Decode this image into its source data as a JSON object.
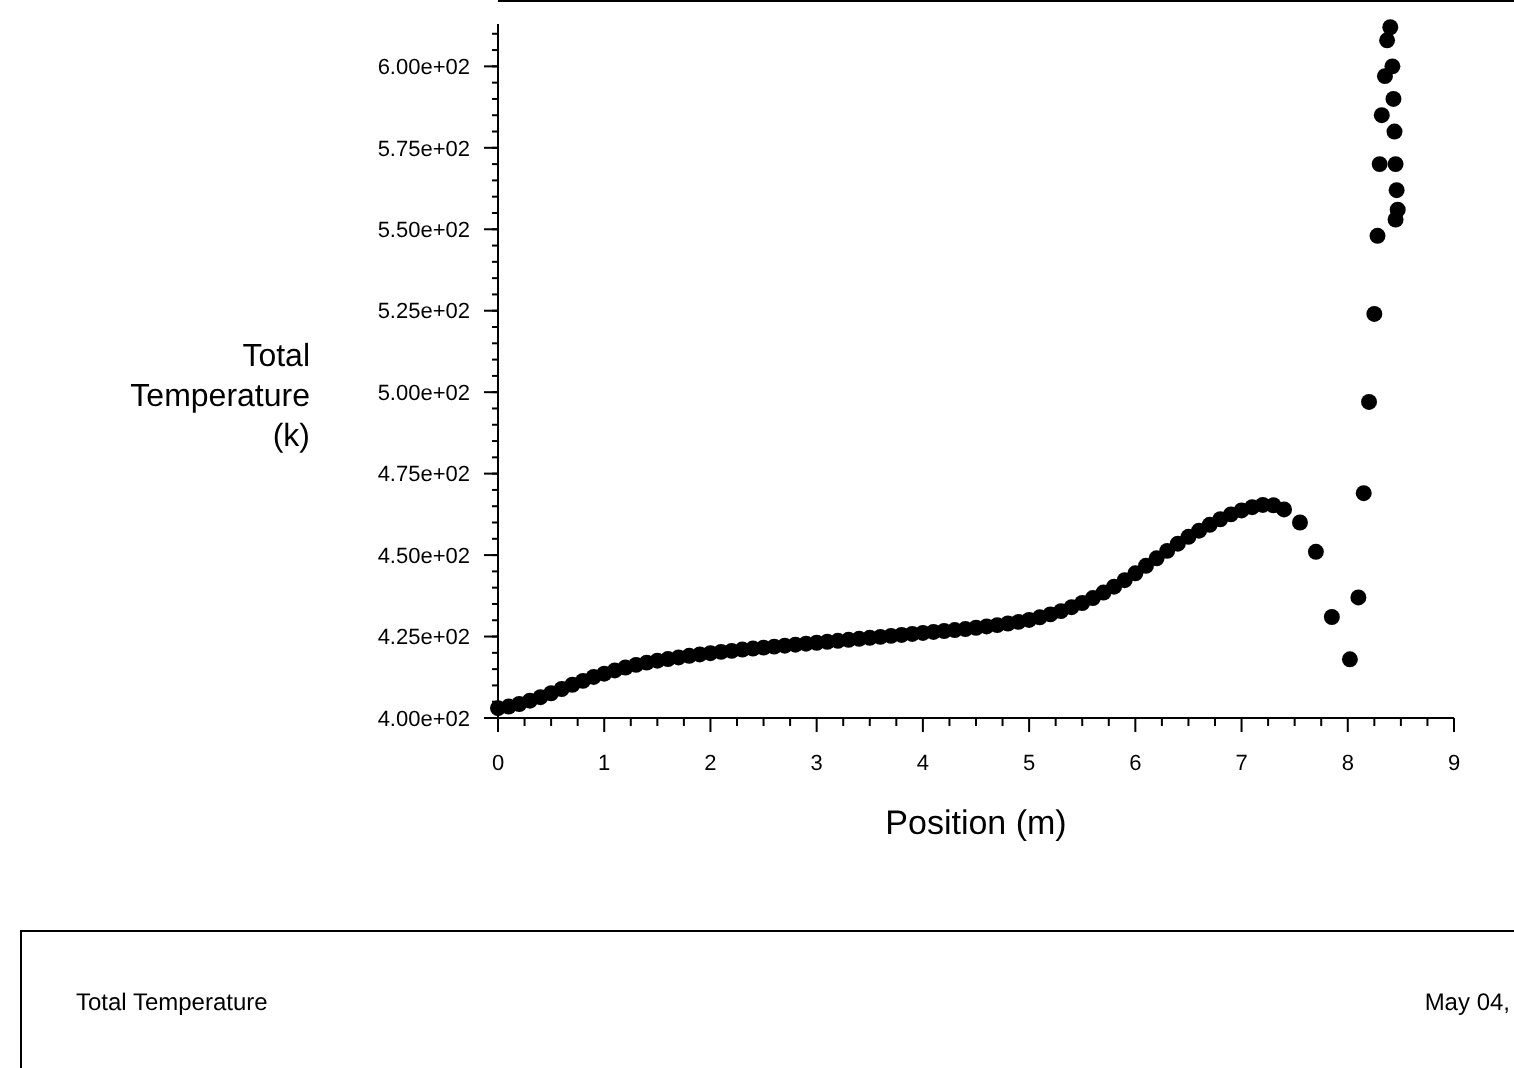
{
  "chart_data": {
    "type": "scatter",
    "xlabel": "Position (m)",
    "ylabel": "Total Temperature (k)",
    "marker": "circle",
    "grid": false,
    "xlim": [
      0,
      9
    ],
    "ylim": [
      400,
      613
    ],
    "xticks": [
      0,
      {
        "value": 0.25,
        "label": null
      },
      {
        "value": 0.5,
        "label": null
      },
      {
        "value": 0.75,
        "label": null
      },
      1,
      {
        "value": 1.25,
        "label": null
      },
      {
        "value": 1.5,
        "label": null
      },
      {
        "value": 1.75,
        "label": null
      },
      2,
      {
        "value": 2.25,
        "label": null
      },
      {
        "value": 2.5,
        "label": null
      },
      {
        "value": 2.75,
        "label": null
      },
      3,
      {
        "value": 3.25,
        "label": null
      },
      {
        "value": 3.5,
        "label": null
      },
      {
        "value": 3.75,
        "label": null
      },
      4,
      {
        "value": 4.25,
        "label": null
      },
      {
        "value": 4.5,
        "label": null
      },
      {
        "value": 4.75,
        "label": null
      },
      5,
      {
        "value": 5.25,
        "label": null
      },
      {
        "value": 5.5,
        "label": null
      },
      {
        "value": 5.75,
        "label": null
      },
      6,
      {
        "value": 6.25,
        "label": null
      },
      {
        "value": 6.5,
        "label": null
      },
      {
        "value": 6.75,
        "label": null
      },
      7,
      {
        "value": 7.25,
        "label": null
      },
      {
        "value": 7.5,
        "label": null
      },
      {
        "value": 7.75,
        "label": null
      },
      8,
      {
        "value": 8.25,
        "label": null
      },
      {
        "value": 8.5,
        "label": null
      },
      {
        "value": 8.75,
        "label": null
      },
      9
    ],
    "yticks": [
      {
        "value": 400,
        "label": "4.00e+02"
      },
      {
        "value": 425,
        "label": "4.25e+02"
      },
      {
        "value": 450,
        "label": "4.50e+02"
      },
      {
        "value": 475,
        "label": "4.75e+02"
      },
      {
        "value": 500,
        "label": "5.00e+02"
      },
      {
        "value": 525,
        "label": "5.25e+02"
      },
      {
        "value": 550,
        "label": "5.50e+02"
      },
      {
        "value": 575,
        "label": "5.75e+02"
      },
      {
        "value": 600,
        "label": "6.00e+02"
      }
    ],
    "annotations": [
      "Total Temperature",
      "May 04,"
    ],
    "series": [
      {
        "color": "#000000",
        "x": [
          0,
          0.1,
          0.2,
          0.3,
          0.4,
          0.5,
          0.6,
          0.7,
          0.8,
          0.9,
          1.0,
          1.1,
          1.2,
          1.3,
          1.4,
          1.5,
          1.6,
          1.7,
          1.8,
          1.9,
          2.0,
          2.1,
          2.2,
          2.3,
          2.4,
          2.5,
          2.6,
          2.7,
          2.8,
          2.9,
          3.0,
          3.1,
          3.2,
          3.3,
          3.4,
          3.5,
          3.6,
          3.7,
          3.8,
          3.9,
          4.0,
          4.1,
          4.2,
          4.3,
          4.4,
          4.5,
          4.6,
          4.7,
          4.8,
          4.9,
          5.0,
          5.1,
          5.2,
          5.3,
          5.4,
          5.5,
          5.6,
          5.7,
          5.8,
          5.9,
          6.0,
          6.1,
          6.2,
          6.3,
          6.4,
          6.5,
          6.6,
          6.7,
          6.8,
          6.9,
          7.0,
          7.1,
          7.2,
          7.3,
          7.4,
          7.55,
          7.7,
          7.85,
          8.02,
          8.1,
          8.15,
          8.2,
          8.25,
          8.28,
          8.3,
          8.32,
          8.35,
          8.37,
          8.4,
          8.42,
          8.43,
          8.44,
          8.45,
          8.46,
          8.47,
          8.45
        ],
        "values": [
          403,
          403.5,
          404.3,
          405.3,
          406.4,
          407.6,
          408.9,
          410.2,
          411.4,
          412.6,
          413.6,
          414.6,
          415.5,
          416.3,
          417,
          417.6,
          418.1,
          418.6,
          419.1,
          419.5,
          419.9,
          420.3,
          420.6,
          421,
          421.3,
          421.6,
          421.9,
          422.2,
          422.5,
          422.8,
          423.1,
          423.4,
          423.7,
          424,
          424.3,
          424.6,
          424.9,
          425.2,
          425.5,
          425.8,
          426.1,
          426.4,
          426.7,
          427,
          427.3,
          427.7,
          428.1,
          428.5,
          429,
          429.5,
          430.1,
          430.9,
          431.8,
          432.8,
          434,
          435.3,
          436.8,
          438.5,
          440.3,
          442.3,
          444.4,
          446.7,
          449,
          451.3,
          453.5,
          455.6,
          457.5,
          459.3,
          461,
          462.5,
          463.7,
          464.7,
          465.4,
          465.3,
          464,
          460,
          451,
          431,
          418,
          437,
          469,
          497,
          524,
          548,
          570,
          585,
          597,
          608,
          612,
          600,
          590,
          580,
          570,
          562,
          556,
          553
        ]
      }
    ]
  }
}
